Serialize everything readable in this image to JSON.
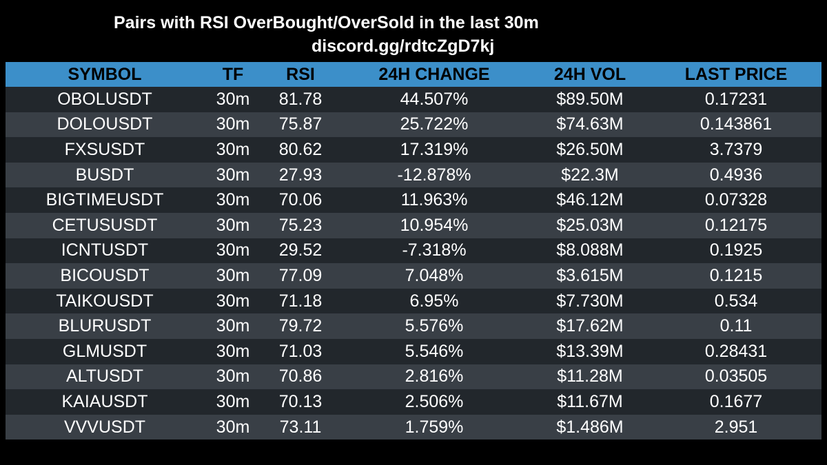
{
  "header": {
    "title": "Pairs with RSI OverBought/OverSold in the last 30m",
    "subtitle": "discord.gg/rdtcZgD7kj"
  },
  "table": {
    "columns": [
      "SYMBOL",
      "TF",
      "RSI",
      "24H CHANGE",
      "24H VOL",
      "LAST PRICE"
    ],
    "rows": [
      [
        "OBOLUSDT",
        "30m",
        "81.78",
        "44.507%",
        "$89.50M",
        "0.17231"
      ],
      [
        "DOLOUSDT",
        "30m",
        "75.87",
        "25.722%",
        "$74.63M",
        "0.143861"
      ],
      [
        "FXSUSDT",
        "30m",
        "80.62",
        "17.319%",
        "$26.50M",
        "3.7379"
      ],
      [
        "BUSDT",
        "30m",
        "27.93",
        "-12.878%",
        "$22.3M",
        "0.4936"
      ],
      [
        "BIGTIMEUSDT",
        "30m",
        "70.06",
        "11.963%",
        "$46.12M",
        "0.07328"
      ],
      [
        "CETUSUSDT",
        "30m",
        "75.23",
        "10.954%",
        "$25.03M",
        "0.12175"
      ],
      [
        "ICNTUSDT",
        "30m",
        "29.52",
        "-7.318%",
        "$8.088M",
        "0.1925"
      ],
      [
        "BICOUSDT",
        "30m",
        "77.09",
        "7.048%",
        "$3.615M",
        "0.1215"
      ],
      [
        "TAIKOUSDT",
        "30m",
        "71.18",
        "6.95%",
        "$7.730M",
        "0.534"
      ],
      [
        "BLURUSDT",
        "30m",
        "79.72",
        "5.576%",
        "$17.62M",
        "0.11"
      ],
      [
        "GLMUSDT",
        "30m",
        "71.03",
        "5.546%",
        "$13.39M",
        "0.28431"
      ],
      [
        "ALTUSDT",
        "30m",
        "70.86",
        "2.816%",
        "$11.28M",
        "0.03505"
      ],
      [
        "KAIAUSDT",
        "30m",
        "70.13",
        "2.506%",
        "$11.67M",
        "0.1677"
      ],
      [
        "VVVUSDT",
        "30m",
        "73.11",
        "1.759%",
        "$1.486M",
        "2.951"
      ]
    ]
  },
  "colors": {
    "background": "#000000",
    "header_bg": "#3c8fc9",
    "row_dark": "#22272c",
    "row_light": "#393f46",
    "text": "#ffffff"
  }
}
